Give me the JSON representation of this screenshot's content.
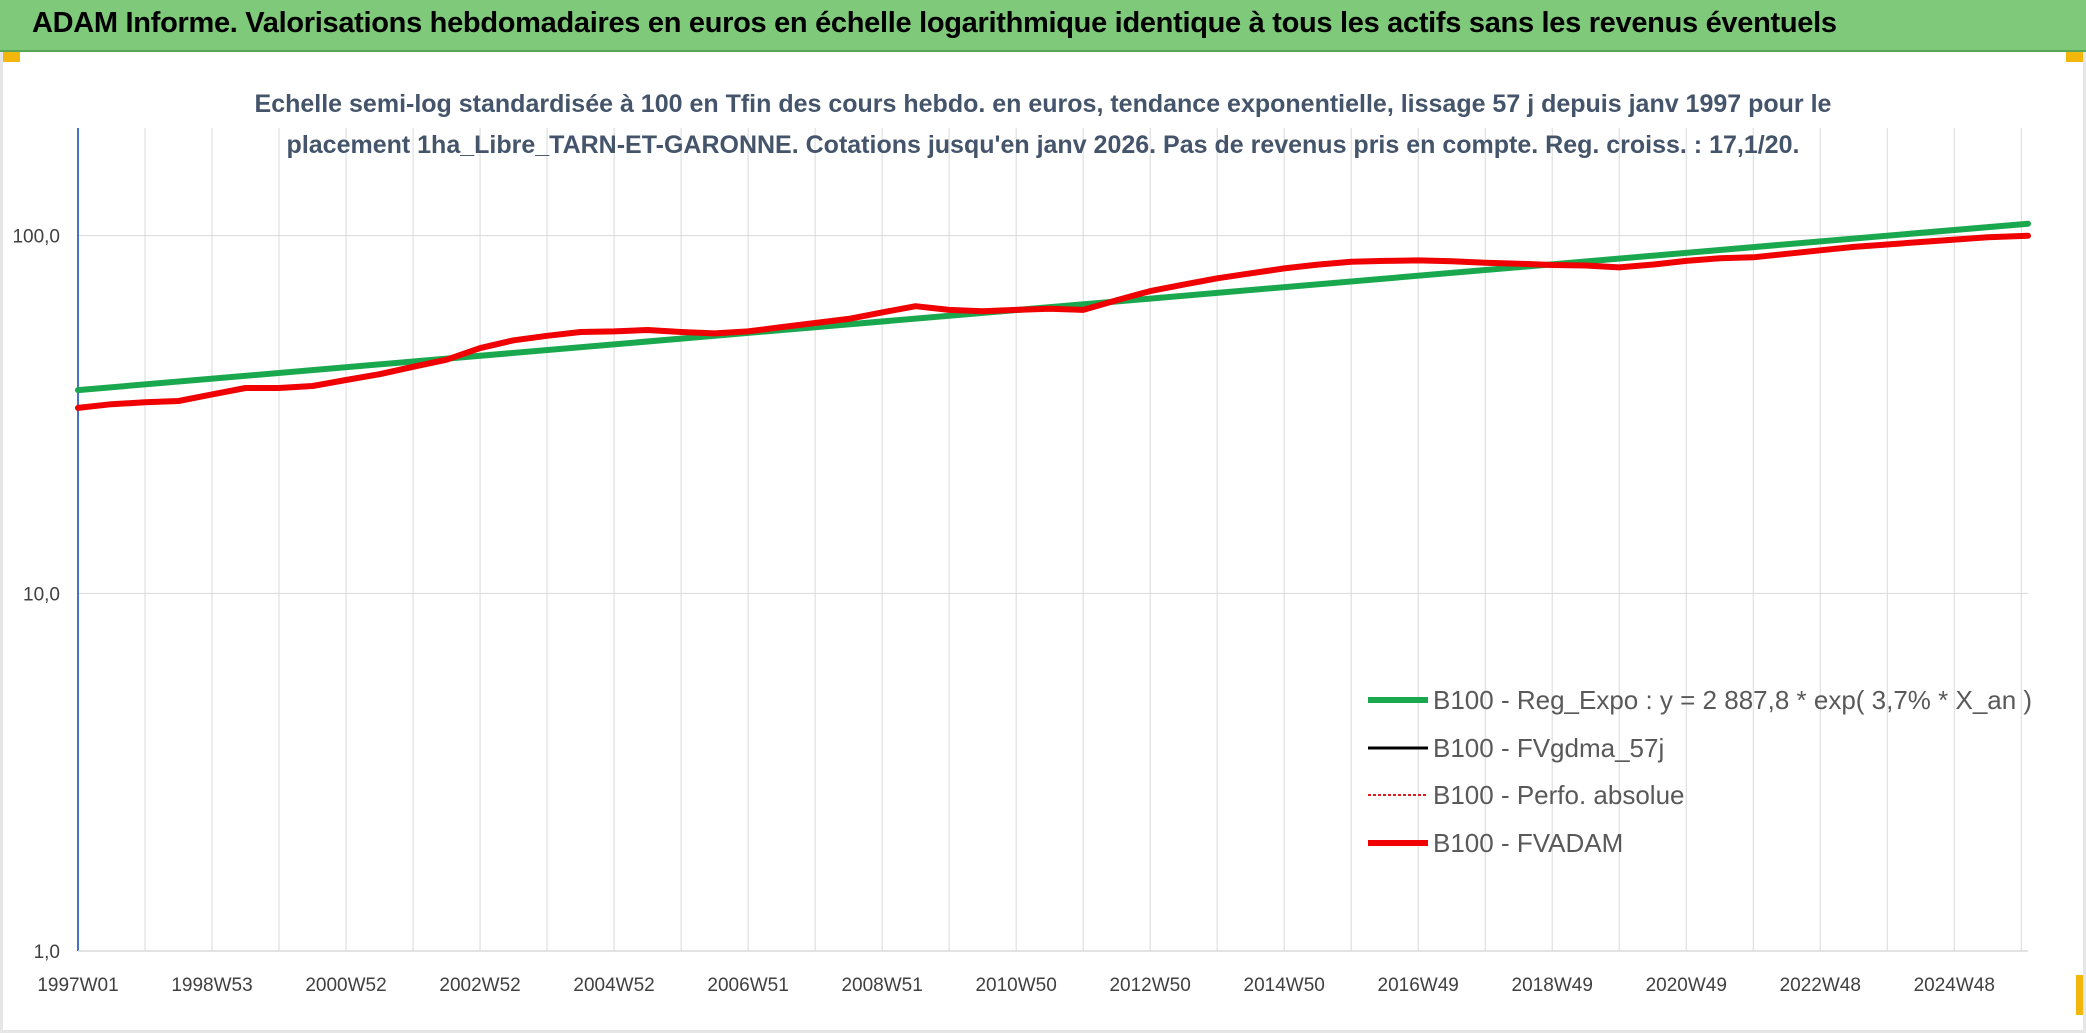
{
  "header": {
    "title": "ADAM Informe. Valorisations hebdomadaires en euros en échelle logarithmique identique à tous les actifs sans les revenus éventuels"
  },
  "colors": {
    "header_bg": "#7fc97a",
    "corner": "#f2b70a",
    "reg_expo": "#1aa84f",
    "fvgdma": "#000000",
    "perfo": "#d92020",
    "fvadam": "#f00000",
    "grid": "#d9d9d9",
    "axis": "#4472c4"
  },
  "chart_data": {
    "type": "line",
    "y_scale": "log",
    "title_lines": [
      "Echelle semi-log standardisée à 100 en Tfin des cours hebdo. en euros, tendance exponentielle, lissage 57 j depuis janv 1997 pour le",
      "placement 1ha_Libre_TARN-ET-GARONNE. Cotations jusqu'en janv 2026. Pas de revenus pris en compte. Reg. croiss. : 17,1/20."
    ],
    "ylim": [
      1,
      200
    ],
    "y_ticks": [
      {
        "value": 1,
        "label": "1,0"
      },
      {
        "value": 10,
        "label": "10,0"
      },
      {
        "value": 100,
        "label": "100,0"
      }
    ],
    "xlim": [
      1997.0,
      2026.1
    ],
    "x_gridlines": [
      1997.0,
      1998.0,
      1999.0,
      2000.0,
      2001.0,
      2002.0,
      2003.0,
      2004.0,
      2005.0,
      2006.0,
      2007.0,
      2008.0,
      2009.0,
      2010.0,
      2011.0,
      2012.0,
      2013.0,
      2014.0,
      2015.0,
      2016.0,
      2017.0,
      2018.0,
      2019.0,
      2020.0,
      2021.0,
      2022.0,
      2023.0,
      2024.0,
      2025.0,
      2026.0
    ],
    "x_ticks": [
      {
        "x": 1997.0,
        "label": "1997W01"
      },
      {
        "x": 1999.0,
        "label": "1998W53"
      },
      {
        "x": 2001.0,
        "label": "2000W52"
      },
      {
        "x": 2003.0,
        "label": "2002W52"
      },
      {
        "x": 2005.0,
        "label": "2004W52"
      },
      {
        "x": 2007.0,
        "label": "2006W51"
      },
      {
        "x": 2009.0,
        "label": "2008W51"
      },
      {
        "x": 2011.0,
        "label": "2010W50"
      },
      {
        "x": 2013.0,
        "label": "2012W50"
      },
      {
        "x": 2015.0,
        "label": "2014W50"
      },
      {
        "x": 2017.0,
        "label": "2016W49"
      },
      {
        "x": 2019.0,
        "label": "2018W49"
      },
      {
        "x": 2021.0,
        "label": "2020W49"
      },
      {
        "x": 2023.0,
        "label": "2022W48"
      },
      {
        "x": 2025.0,
        "label": "2024W48"
      }
    ],
    "series": [
      {
        "key": "reg_expo",
        "name": "B100 - Reg_Expo : y = 2 887,8 * exp( 3,7% *  X_an )",
        "style": "solid-thick",
        "x": [
          1997.0,
          2026.1
        ],
        "values": [
          37.0,
          108.0
        ]
      },
      {
        "key": "fvgdma",
        "name": "B100 - FVgdma_57j",
        "style": "solid",
        "x": [],
        "values": []
      },
      {
        "key": "perfo",
        "name": "B100 - Perfo. absolue",
        "style": "dotted",
        "x": [],
        "values": []
      },
      {
        "key": "fvadam",
        "name": "B100 - FVADAM",
        "style": "solid-thick",
        "x": [
          1997.0,
          1997.5,
          1998.0,
          1998.5,
          1999.0,
          1999.5,
          2000.0,
          2000.5,
          2001.0,
          2001.5,
          2002.0,
          2002.5,
          2003.0,
          2003.5,
          2004.0,
          2004.5,
          2005.0,
          2005.5,
          2006.0,
          2006.5,
          2007.0,
          2007.5,
          2008.0,
          2008.5,
          2009.0,
          2009.5,
          2010.0,
          2010.5,
          2011.0,
          2011.5,
          2012.0,
          2012.5,
          2013.0,
          2013.5,
          2014.0,
          2014.5,
          2015.0,
          2015.5,
          2016.0,
          2016.5,
          2017.0,
          2017.5,
          2018.0,
          2018.5,
          2019.0,
          2019.5,
          2020.0,
          2020.5,
          2021.0,
          2021.5,
          2022.0,
          2022.5,
          2023.0,
          2023.5,
          2024.0,
          2024.5,
          2025.0,
          2025.5,
          2026.1
        ],
        "values": [
          33.0,
          33.8,
          34.2,
          34.5,
          36.0,
          37.5,
          37.5,
          38.0,
          39.5,
          41.0,
          43.0,
          45.0,
          48.5,
          51.0,
          52.5,
          53.8,
          54.0,
          54.5,
          53.8,
          53.3,
          54.0,
          55.5,
          57.0,
          58.5,
          61.0,
          63.5,
          62.0,
          61.5,
          62.0,
          62.5,
          62.0,
          66.0,
          70.0,
          73.0,
          76.0,
          78.5,
          81.0,
          83.0,
          84.5,
          85.0,
          85.3,
          84.8,
          84.0,
          83.5,
          82.8,
          82.5,
          81.5,
          83.0,
          85.0,
          86.5,
          87.0,
          89.0,
          91.0,
          93.0,
          94.5,
          96.0,
          97.5,
          99.0,
          100.0
        ]
      }
    ]
  }
}
